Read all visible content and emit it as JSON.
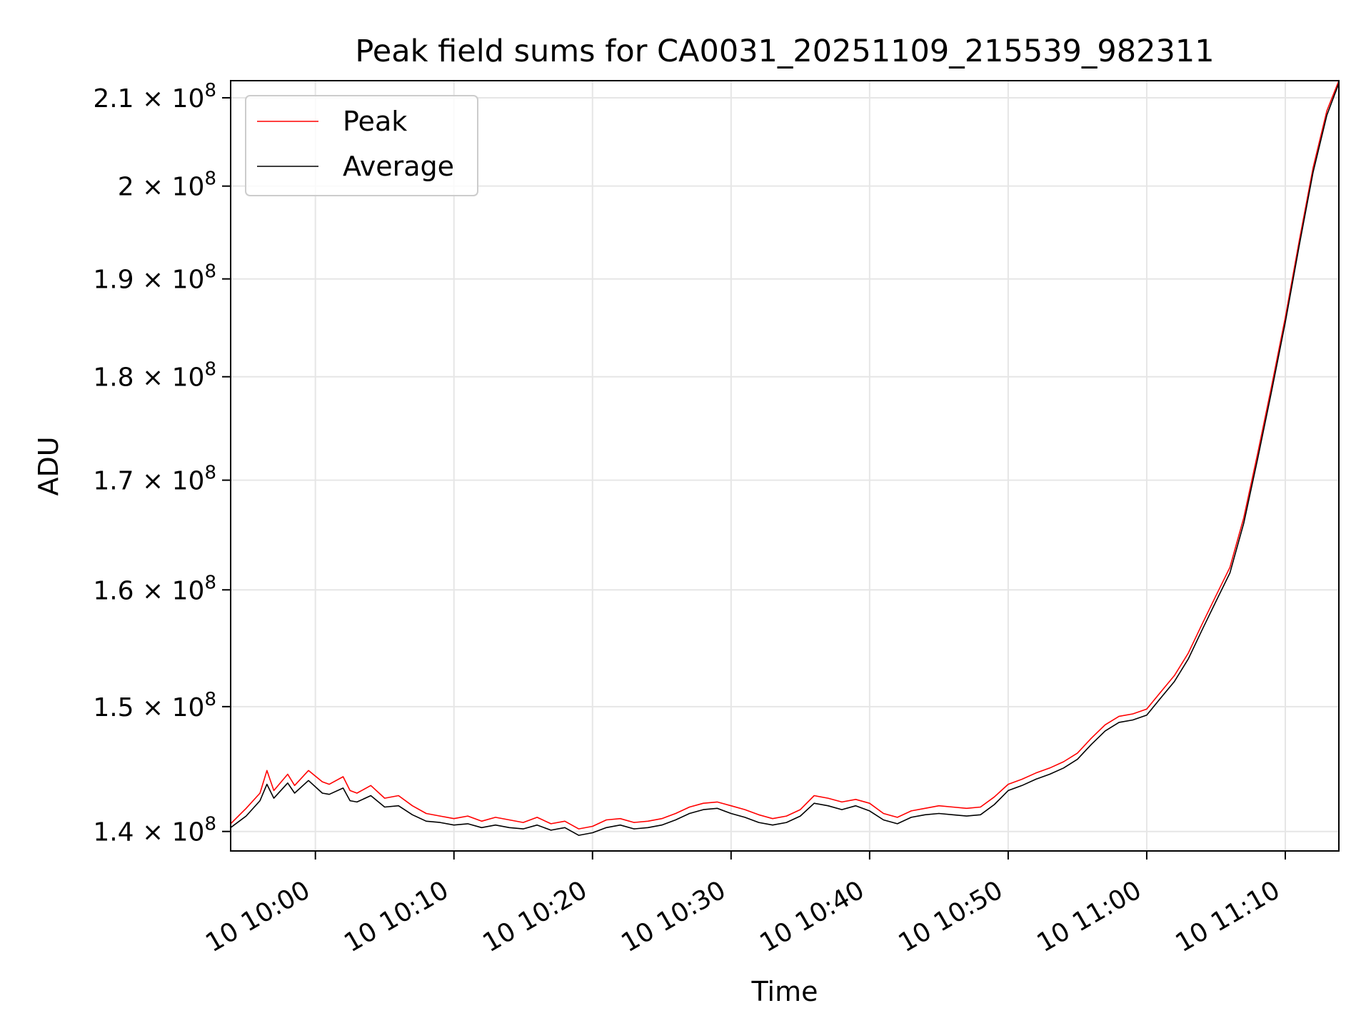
{
  "chart_data": {
    "type": "line",
    "title": "Peak field sums for CA0031_20251109_215539_982311",
    "xlabel": "Time",
    "ylabel": "ADU",
    "y_scale": "log",
    "ylim": [
      138500000,
      212000000
    ],
    "xlim": [
      "2025-11-10 09:53:53",
      "2025-11-10 11:13:52"
    ],
    "grid": true,
    "legend_position": "upper-left",
    "x_ticks": [
      {
        "value": "2025-11-10 10:00",
        "label": "10 10:00"
      },
      {
        "value": "2025-11-10 10:10",
        "label": "10 10:10"
      },
      {
        "value": "2025-11-10 10:20",
        "label": "10 10:20"
      },
      {
        "value": "2025-11-10 10:30",
        "label": "10 10:30"
      },
      {
        "value": "2025-11-10 10:40",
        "label": "10 10:40"
      },
      {
        "value": "2025-11-10 10:50",
        "label": "10 10:50"
      },
      {
        "value": "2025-11-10 11:00",
        "label": "10 11:00"
      },
      {
        "value": "2025-11-10 11:10",
        "label": "10 11:10"
      }
    ],
    "y_ticks": [
      {
        "value": 140000000,
        "mantissa": "1.4",
        "exponent": "8"
      },
      {
        "value": 150000000,
        "mantissa": "1.5",
        "exponent": "8"
      },
      {
        "value": 160000000,
        "mantissa": "1.6",
        "exponent": "8"
      },
      {
        "value": 170000000,
        "mantissa": "1.7",
        "exponent": "8"
      },
      {
        "value": 180000000,
        "mantissa": "1.8",
        "exponent": "8"
      },
      {
        "value": 190000000,
        "mantissa": "1.9",
        "exponent": "8"
      },
      {
        "value": 200000000,
        "mantissa": "2",
        "exponent": "8"
      },
      {
        "value": 210000000,
        "mantissa": "2.1",
        "exponent": "8"
      }
    ],
    "series": [
      {
        "name": "Peak",
        "color": "#ff0000",
        "points": [
          [
            "2025-11-10 09:53:53",
            140600000
          ],
          [
            "2025-11-10 09:55:00",
            141800000
          ],
          [
            "2025-11-10 09:56:00",
            143000000
          ],
          [
            "2025-11-10 09:56:30",
            144800000
          ],
          [
            "2025-11-10 09:57:00",
            143200000
          ],
          [
            "2025-11-10 09:58:00",
            144500000
          ],
          [
            "2025-11-10 09:58:30",
            143600000
          ],
          [
            "2025-11-10 09:59:30",
            144800000
          ],
          [
            "2025-11-10 10:00:30",
            143900000
          ],
          [
            "2025-11-10 10:01:00",
            143700000
          ],
          [
            "2025-11-10 10:02:00",
            144300000
          ],
          [
            "2025-11-10 10:02:30",
            143200000
          ],
          [
            "2025-11-10 10:03:00",
            143000000
          ],
          [
            "2025-11-10 10:04:00",
            143600000
          ],
          [
            "2025-11-10 10:05:00",
            142600000
          ],
          [
            "2025-11-10 10:06:00",
            142800000
          ],
          [
            "2025-11-10 10:07:00",
            142000000
          ],
          [
            "2025-11-10 10:08:00",
            141400000
          ],
          [
            "2025-11-10 10:09:00",
            141200000
          ],
          [
            "2025-11-10 10:10:00",
            141000000
          ],
          [
            "2025-11-10 10:11:00",
            141200000
          ],
          [
            "2025-11-10 10:12:00",
            140800000
          ],
          [
            "2025-11-10 10:13:00",
            141100000
          ],
          [
            "2025-11-10 10:14:00",
            140900000
          ],
          [
            "2025-11-10 10:15:00",
            140700000
          ],
          [
            "2025-11-10 10:16:00",
            141100000
          ],
          [
            "2025-11-10 10:17:00",
            140600000
          ],
          [
            "2025-11-10 10:18:00",
            140800000
          ],
          [
            "2025-11-10 10:19:00",
            140200000
          ],
          [
            "2025-11-10 10:20:00",
            140400000
          ],
          [
            "2025-11-10 10:21:00",
            140900000
          ],
          [
            "2025-11-10 10:22:00",
            141000000
          ],
          [
            "2025-11-10 10:23:00",
            140700000
          ],
          [
            "2025-11-10 10:24:00",
            140800000
          ],
          [
            "2025-11-10 10:25:00",
            141000000
          ],
          [
            "2025-11-10 10:26:00",
            141400000
          ],
          [
            "2025-11-10 10:27:00",
            141900000
          ],
          [
            "2025-11-10 10:28:00",
            142200000
          ],
          [
            "2025-11-10 10:29:00",
            142300000
          ],
          [
            "2025-11-10 10:30:00",
            142000000
          ],
          [
            "2025-11-10 10:31:00",
            141700000
          ],
          [
            "2025-11-10 10:32:00",
            141300000
          ],
          [
            "2025-11-10 10:33:00",
            141000000
          ],
          [
            "2025-11-10 10:34:00",
            141200000
          ],
          [
            "2025-11-10 10:35:00",
            141700000
          ],
          [
            "2025-11-10 10:36:00",
            142800000
          ],
          [
            "2025-11-10 10:37:00",
            142600000
          ],
          [
            "2025-11-10 10:38:00",
            142300000
          ],
          [
            "2025-11-10 10:39:00",
            142500000
          ],
          [
            "2025-11-10 10:40:00",
            142200000
          ],
          [
            "2025-11-10 10:41:00",
            141400000
          ],
          [
            "2025-11-10 10:42:00",
            141100000
          ],
          [
            "2025-11-10 10:43:00",
            141600000
          ],
          [
            "2025-11-10 10:44:00",
            141800000
          ],
          [
            "2025-11-10 10:45:00",
            142000000
          ],
          [
            "2025-11-10 10:46:00",
            141900000
          ],
          [
            "2025-11-10 10:47:00",
            141800000
          ],
          [
            "2025-11-10 10:48:00",
            141900000
          ],
          [
            "2025-11-10 10:49:00",
            142700000
          ],
          [
            "2025-11-10 10:50:00",
            143700000
          ],
          [
            "2025-11-10 10:51:00",
            144100000
          ],
          [
            "2025-11-10 10:52:00",
            144600000
          ],
          [
            "2025-11-10 10:53:00",
            145000000
          ],
          [
            "2025-11-10 10:54:00",
            145500000
          ],
          [
            "2025-11-10 10:55:00",
            146200000
          ],
          [
            "2025-11-10 10:56:00",
            147400000
          ],
          [
            "2025-11-10 10:57:00",
            148500000
          ],
          [
            "2025-11-10 10:58:00",
            149200000
          ],
          [
            "2025-11-10 10:59:00",
            149400000
          ],
          [
            "2025-11-10 11:00:00",
            149800000
          ],
          [
            "2025-11-10 11:01:00",
            151200000
          ],
          [
            "2025-11-10 11:02:00",
            152600000
          ],
          [
            "2025-11-10 11:03:00",
            154500000
          ],
          [
            "2025-11-10 11:04:00",
            157000000
          ],
          [
            "2025-11-10 11:05:00",
            159500000
          ],
          [
            "2025-11-10 11:06:00",
            162000000
          ],
          [
            "2025-11-10 11:07:00",
            166500000
          ],
          [
            "2025-11-10 11:08:00",
            172500000
          ],
          [
            "2025-11-10 11:09:00",
            179000000
          ],
          [
            "2025-11-10 11:10:00",
            186000000
          ],
          [
            "2025-11-10 11:11:00",
            194000000
          ],
          [
            "2025-11-10 11:12:00",
            202000000
          ],
          [
            "2025-11-10 11:13:00",
            208500000
          ],
          [
            "2025-11-10 11:13:52",
            212000000
          ]
        ]
      },
      {
        "name": "Average",
        "color": "#000000",
        "points": [
          [
            "2025-11-10 09:53:53",
            140300000
          ],
          [
            "2025-11-10 09:55:00",
            141200000
          ],
          [
            "2025-11-10 09:56:00",
            142400000
          ],
          [
            "2025-11-10 09:56:30",
            143700000
          ],
          [
            "2025-11-10 09:57:00",
            142600000
          ],
          [
            "2025-11-10 09:58:00",
            143800000
          ],
          [
            "2025-11-10 09:58:30",
            143000000
          ],
          [
            "2025-11-10 09:59:30",
            144000000
          ],
          [
            "2025-11-10 10:00:30",
            143000000
          ],
          [
            "2025-11-10 10:01:00",
            142900000
          ],
          [
            "2025-11-10 10:02:00",
            143400000
          ],
          [
            "2025-11-10 10:02:30",
            142400000
          ],
          [
            "2025-11-10 10:03:00",
            142300000
          ],
          [
            "2025-11-10 10:04:00",
            142800000
          ],
          [
            "2025-11-10 10:05:00",
            141900000
          ],
          [
            "2025-11-10 10:06:00",
            142000000
          ],
          [
            "2025-11-10 10:07:00",
            141300000
          ],
          [
            "2025-11-10 10:08:00",
            140800000
          ],
          [
            "2025-11-10 10:09:00",
            140700000
          ],
          [
            "2025-11-10 10:10:00",
            140500000
          ],
          [
            "2025-11-10 10:11:00",
            140600000
          ],
          [
            "2025-11-10 10:12:00",
            140300000
          ],
          [
            "2025-11-10 10:13:00",
            140500000
          ],
          [
            "2025-11-10 10:14:00",
            140300000
          ],
          [
            "2025-11-10 10:15:00",
            140200000
          ],
          [
            "2025-11-10 10:16:00",
            140500000
          ],
          [
            "2025-11-10 10:17:00",
            140100000
          ],
          [
            "2025-11-10 10:18:00",
            140300000
          ],
          [
            "2025-11-10 10:19:00",
            139700000
          ],
          [
            "2025-11-10 10:20:00",
            139900000
          ],
          [
            "2025-11-10 10:21:00",
            140300000
          ],
          [
            "2025-11-10 10:22:00",
            140500000
          ],
          [
            "2025-11-10 10:23:00",
            140200000
          ],
          [
            "2025-11-10 10:24:00",
            140300000
          ],
          [
            "2025-11-10 10:25:00",
            140500000
          ],
          [
            "2025-11-10 10:26:00",
            140900000
          ],
          [
            "2025-11-10 10:27:00",
            141400000
          ],
          [
            "2025-11-10 10:28:00",
            141700000
          ],
          [
            "2025-11-10 10:29:00",
            141800000
          ],
          [
            "2025-11-10 10:30:00",
            141400000
          ],
          [
            "2025-11-10 10:31:00",
            141100000
          ],
          [
            "2025-11-10 10:32:00",
            140700000
          ],
          [
            "2025-11-10 10:33:00",
            140500000
          ],
          [
            "2025-11-10 10:34:00",
            140700000
          ],
          [
            "2025-11-10 10:35:00",
            141200000
          ],
          [
            "2025-11-10 10:36:00",
            142200000
          ],
          [
            "2025-11-10 10:37:00",
            142000000
          ],
          [
            "2025-11-10 10:38:00",
            141700000
          ],
          [
            "2025-11-10 10:39:00",
            142000000
          ],
          [
            "2025-11-10 10:40:00",
            141600000
          ],
          [
            "2025-11-10 10:41:00",
            140900000
          ],
          [
            "2025-11-10 10:42:00",
            140600000
          ],
          [
            "2025-11-10 10:43:00",
            141100000
          ],
          [
            "2025-11-10 10:44:00",
            141300000
          ],
          [
            "2025-11-10 10:45:00",
            141400000
          ],
          [
            "2025-11-10 10:46:00",
            141300000
          ],
          [
            "2025-11-10 10:47:00",
            141200000
          ],
          [
            "2025-11-10 10:48:00",
            141300000
          ],
          [
            "2025-11-10 10:49:00",
            142100000
          ],
          [
            "2025-11-10 10:50:00",
            143200000
          ],
          [
            "2025-11-10 10:51:00",
            143600000
          ],
          [
            "2025-11-10 10:52:00",
            144100000
          ],
          [
            "2025-11-10 10:53:00",
            144500000
          ],
          [
            "2025-11-10 10:54:00",
            145000000
          ],
          [
            "2025-11-10 10:55:00",
            145700000
          ],
          [
            "2025-11-10 10:56:00",
            146900000
          ],
          [
            "2025-11-10 10:57:00",
            148000000
          ],
          [
            "2025-11-10 10:58:00",
            148700000
          ],
          [
            "2025-11-10 10:59:00",
            148900000
          ],
          [
            "2025-11-10 11:00:00",
            149300000
          ],
          [
            "2025-11-10 11:01:00",
            150700000
          ],
          [
            "2025-11-10 11:02:00",
            152100000
          ],
          [
            "2025-11-10 11:03:00",
            154000000
          ],
          [
            "2025-11-10 11:04:00",
            156500000
          ],
          [
            "2025-11-10 11:05:00",
            159000000
          ],
          [
            "2025-11-10 11:06:00",
            161500000
          ],
          [
            "2025-11-10 11:07:00",
            166000000
          ],
          [
            "2025-11-10 11:08:00",
            172000000
          ],
          [
            "2025-11-10 11:09:00",
            178500000
          ],
          [
            "2025-11-10 11:10:00",
            185500000
          ],
          [
            "2025-11-10 11:11:00",
            193500000
          ],
          [
            "2025-11-10 11:12:00",
            201500000
          ],
          [
            "2025-11-10 11:13:00",
            208000000
          ],
          [
            "2025-11-10 11:13:52",
            211700000
          ]
        ]
      }
    ]
  }
}
